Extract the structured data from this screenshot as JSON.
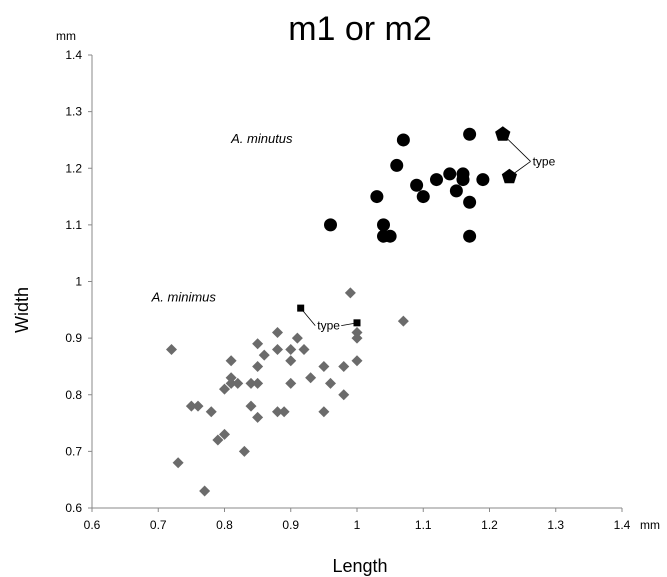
{
  "chart_data": {
    "type": "scatter",
    "title": "m1 or m2",
    "xlabel": "Length",
    "ylabel": "Width",
    "x_unit": "mm",
    "y_unit": "mm",
    "xlim": [
      0.6,
      1.4
    ],
    "ylim": [
      0.6,
      1.4
    ],
    "xticks": [
      "0.6",
      "0.7",
      "0.8",
      "0.9",
      "1",
      "1.1",
      "1.2",
      "1.3",
      "1.4"
    ],
    "yticks": [
      "0.6",
      "0.7",
      "0.8",
      "0.9",
      "1",
      "1.1",
      "1.2",
      "1.3",
      "1.4"
    ],
    "grid": false,
    "series": [
      {
        "name": "A. minutus",
        "marker": "circle",
        "color": "#000000",
        "points": [
          [
            0.96,
            1.1
          ],
          [
            1.03,
            1.15
          ],
          [
            1.04,
            1.1
          ],
          [
            1.04,
            1.08
          ],
          [
            1.05,
            1.08
          ],
          [
            1.06,
            1.205
          ],
          [
            1.07,
            1.25
          ],
          [
            1.09,
            1.17
          ],
          [
            1.1,
            1.15
          ],
          [
            1.12,
            1.18
          ],
          [
            1.14,
            1.19
          ],
          [
            1.15,
            1.16
          ],
          [
            1.16,
            1.19
          ],
          [
            1.16,
            1.18
          ],
          [
            1.17,
            1.26
          ],
          [
            1.17,
            1.14
          ],
          [
            1.17,
            1.08
          ],
          [
            1.19,
            1.18
          ]
        ],
        "type_points": [
          [
            1.22,
            1.26
          ],
          [
            1.23,
            1.185
          ]
        ],
        "type_marker": "pentagon"
      },
      {
        "name": "A. minimus",
        "marker": "diamond",
        "color": "#6b6b6b",
        "points": [
          [
            0.72,
            0.88
          ],
          [
            0.73,
            0.68
          ],
          [
            0.75,
            0.78
          ],
          [
            0.76,
            0.78
          ],
          [
            0.77,
            0.63
          ],
          [
            0.78,
            0.77
          ],
          [
            0.79,
            0.72
          ],
          [
            0.8,
            0.73
          ],
          [
            0.8,
            0.81
          ],
          [
            0.81,
            0.86
          ],
          [
            0.81,
            0.83
          ],
          [
            0.81,
            0.82
          ],
          [
            0.82,
            0.82
          ],
          [
            0.83,
            0.7
          ],
          [
            0.84,
            0.82
          ],
          [
            0.84,
            0.78
          ],
          [
            0.85,
            0.76
          ],
          [
            0.85,
            0.85
          ],
          [
            0.85,
            0.82
          ],
          [
            0.85,
            0.89
          ],
          [
            0.86,
            0.87
          ],
          [
            0.88,
            0.91
          ],
          [
            0.88,
            0.88
          ],
          [
            0.88,
            0.77
          ],
          [
            0.89,
            0.77
          ],
          [
            0.9,
            0.88
          ],
          [
            0.9,
            0.86
          ],
          [
            0.9,
            0.82
          ],
          [
            0.91,
            0.9
          ],
          [
            0.92,
            0.88
          ],
          [
            0.93,
            0.83
          ],
          [
            0.95,
            0.85
          ],
          [
            0.95,
            0.77
          ],
          [
            0.96,
            0.82
          ],
          [
            0.98,
            0.85
          ],
          [
            0.98,
            0.8
          ],
          [
            0.99,
            0.98
          ],
          [
            1.0,
            0.91
          ],
          [
            1.0,
            0.9
          ],
          [
            1.0,
            0.86
          ],
          [
            1.07,
            0.93
          ]
        ],
        "type_points": [
          [
            0.915,
            0.953
          ],
          [
            1.0,
            0.927
          ]
        ],
        "type_marker": "square"
      }
    ],
    "annotations": [
      {
        "text": "A. minutus",
        "x": 0.81,
        "y": 1.245,
        "italic": true
      },
      {
        "text": "A. minimus",
        "x": 0.69,
        "y": 0.965,
        "italic": true
      },
      {
        "text": "type",
        "x": 1.265,
        "y": 1.205,
        "italic": false,
        "points_to": [
          [
            1.22,
            1.26
          ],
          [
            1.23,
            1.185
          ]
        ]
      },
      {
        "text": "type",
        "x": 0.94,
        "y": 0.915,
        "italic": false,
        "points_to": [
          [
            0.915,
            0.953
          ],
          [
            1.0,
            0.927
          ]
        ]
      }
    ]
  }
}
